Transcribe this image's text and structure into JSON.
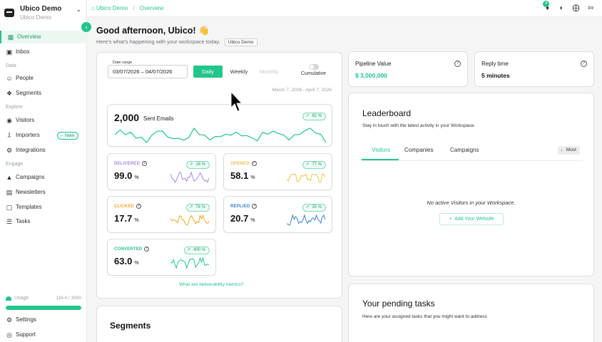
{
  "workspace": {
    "name": "Ubico Demo",
    "subtitle": "Ubico Demo"
  },
  "sidebar": {
    "overview": "Overview",
    "inbox": "Inbox",
    "section_data": "Data",
    "people": "People",
    "segments": "Segments",
    "section_explore": "Explore",
    "visitors": "Visitors",
    "importers": "Importers",
    "importers_badge": "New",
    "integrations": "Integrations",
    "section_engage": "Engage",
    "campaigns": "Campaigns",
    "newsletters": "Newsletters",
    "templates": "Templates",
    "tasks": "Tasks",
    "usage_label": "Usage",
    "usage_value": "116.4 / 3000",
    "usage_fraction": 1.0,
    "settings": "Settings",
    "support": "Support"
  },
  "topbar": {
    "crumb_home": "Ubico Demo",
    "crumb_current": "Overview",
    "notification_count": "4"
  },
  "greeting": {
    "title": "Good afternoon, Ubico! 👋",
    "subtitle": "Here's what's happening with your workspace today.",
    "chip": "Ubico Demo"
  },
  "filters": {
    "date_range_label": "Date range",
    "date_range_value": "03/07/2026 – 04/07/2026",
    "daily": "Daily",
    "weekly": "Weekly",
    "monthly": "Monthly",
    "cumulative": "Cumulative",
    "range_text": "March 7, 2026 - April 7, 2026"
  },
  "stats": {
    "sent": {
      "value": "2,000",
      "label": "Sent Emails",
      "change": "82 %",
      "color": "#22c58b"
    },
    "delivered": {
      "label": "DELIVERED",
      "value": "99.0",
      "unit": "%",
      "change": "18 %",
      "color": "#a78bdb"
    },
    "opened": {
      "label": "OPENED",
      "value": "58.1",
      "unit": "%",
      "change": "77 %",
      "color": "#f0c24a"
    },
    "clicked": {
      "label": "CLICKED",
      "value": "17.7",
      "unit": "%",
      "change": "76 %",
      "color": "#f0a72a"
    },
    "replied": {
      "label": "REPLIED",
      "value": "20.7",
      "unit": "%",
      "change": "35 %",
      "color": "#3b82d6"
    },
    "converted": {
      "label": "CONVERTED",
      "value": "63.0",
      "unit": "%",
      "change": "400 %",
      "color": "#22c58b"
    }
  },
  "deliverability_link": "What are deliverability metrics?",
  "segments_title": "Segments",
  "pipeline": {
    "label": "Pipeline Value",
    "value": "$ 3,000,000"
  },
  "reply_time": {
    "label": "Reply time",
    "value": "5 minutes"
  },
  "leaderboard": {
    "title": "Leaderboard",
    "subtitle": "Stay in touch with the latest activity in your Workspace.",
    "tabs": [
      "Visitors",
      "Companies",
      "Campaigns"
    ],
    "sort": "Most",
    "empty": "No active Visitors in your Workspace.",
    "add_button": "Add Your Website"
  },
  "tasks": {
    "title": "Your pending tasks",
    "subtitle": "Here are your assigned tasks that you might want to address"
  }
}
